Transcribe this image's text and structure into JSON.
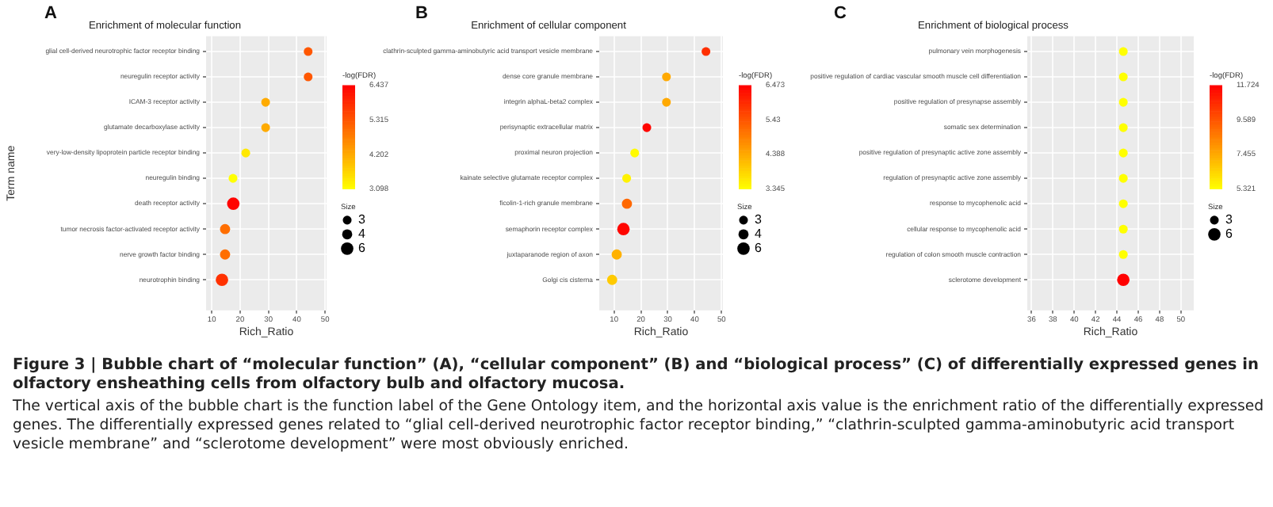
{
  "chart_data": [
    {
      "type": "bubble",
      "orientation": "horizontal",
      "title": "Enrichment of molecular function",
      "xlabel": "Rich_Ratio",
      "ylabel": "Term name",
      "clabel": "-log(FDR)",
      "legend_title": "Size",
      "annotations": [
        "A"
      ],
      "categories": [
        "glial cell-derived neurotrophic factor receptor binding",
        "neuregulin receptor activity",
        "ICAM-3 receptor activity",
        "glutamate decarboxylase activity",
        "very-low-density lipoprotein particle receptor binding",
        "neuregulin binding",
        "death receptor activity",
        "tumor necrosis factor-activated receptor activity",
        "nerve growth factor binding",
        "neurotrophin binding"
      ],
      "values": [
        44,
        44,
        29,
        29,
        22,
        17.5,
        17.6,
        14.7,
        14.7,
        13.6
      ],
      "sizes": [
        3,
        3,
        3,
        3,
        3,
        3,
        6,
        4,
        4,
        6
      ],
      "cvalues": [
        5.3,
        5.3,
        4.2,
        4.2,
        3.4,
        3.1,
        6.4,
        5.0,
        5.0,
        5.8
      ],
      "size_legend": [
        3,
        4,
        6
      ],
      "clim": [
        3.098,
        6.437
      ],
      "cticks": [
        3.098,
        4.202,
        5.315,
        6.437
      ],
      "xlim": [
        8,
        50.5
      ],
      "xticks": [
        10,
        20,
        30,
        40,
        50
      ],
      "grid": true
    },
    {
      "type": "bubble",
      "orientation": "horizontal",
      "title": "Enrichment of cellular component",
      "xlabel": "Rich_Ratio",
      "clabel": "-log(FDR)",
      "legend_title": "Size",
      "annotations": [
        "B"
      ],
      "categories": [
        "clathrin-sculpted gamma-aminobutyric acid transport vesicle membrane",
        "dense core granule membrane",
        "integrin alphaL-beta2 complex",
        "perisynaptic extracellular matrix",
        "proximal neuron projection",
        "kainate selective glutamate receptor complex",
        "ficolin-1-rich granule membrane",
        "semaphorin receptor complex",
        "juxtaparanode region of axon",
        "Golgi cis cisterna"
      ],
      "values": [
        44.2,
        29.5,
        29.5,
        22.2,
        17.7,
        14.7,
        14.8,
        13.5,
        11,
        9.3
      ],
      "sizes": [
        3,
        3,
        3,
        3,
        3,
        3,
        4,
        6,
        4,
        4
      ],
      "cvalues": [
        5.9,
        4.4,
        4.4,
        6.4,
        3.4,
        3.5,
        5.2,
        6.4,
        4.3,
        4.0
      ],
      "size_legend": [
        3,
        4,
        6
      ],
      "clim": [
        3.345,
        6.473
      ],
      "cticks": [
        3.345,
        4.388,
        5.43,
        6.473
      ],
      "xlim": [
        4.5,
        50.5
      ],
      "xticks": [
        10,
        20,
        30,
        40,
        50
      ],
      "grid": true
    },
    {
      "type": "bubble",
      "orientation": "horizontal",
      "title": "Enrichment of biological process",
      "xlabel": "Rich_Ratio",
      "clabel": "-log(FDR)",
      "legend_title": "Size",
      "annotations": [
        "C",
        "Figure 3  |  Bubble chart of “molecular function” (A), “cellular component” (B) and “biological process” (C) of differentially expressed genes in olfactory ensheathing cells from olfactory bulb and olfactory mucosa.",
        "The vertical axis of the bubble chart is the function label of the Gene Ontology item, and the horizontal axis value is the enrichment ratio of the differentially expressed genes. The differentially expressed genes related to “glial cell-derived neurotrophic factor receptor binding,” “clathrin-sculpted gamma-aminobutyric acid transport vesicle membrane” and “sclerotome development” were most obviously enriched."
      ],
      "categories": [
        "pulmonary vein morphogenesis",
        "positive regulation of cardiac vascular smooth muscle cell differentiation",
        "positive regulation of presynapse assembly",
        "somatic sex determination",
        "positive regulation of presynaptic active zone assembly",
        "regulation of presynaptic active zone assembly",
        "response to mycophenolic acid",
        "cellular response to mycophenolic acid",
        "regulation of colon smooth muscle contraction",
        "sclerotome development"
      ],
      "values": [
        44.6,
        44.6,
        44.6,
        44.6,
        44.6,
        44.6,
        44.6,
        44.6,
        44.6,
        44.6
      ],
      "sizes": [
        3,
        3,
        3,
        3,
        3,
        3,
        3,
        3,
        3,
        6
      ],
      "cvalues": [
        5.321,
        5.321,
        5.321,
        5.321,
        5.321,
        5.321,
        5.321,
        5.321,
        5.321,
        11.724
      ],
      "size_legend": [
        3,
        6
      ],
      "clim": [
        5.321,
        11.724
      ],
      "cticks": [
        5.321,
        7.455,
        9.589,
        11.724
      ],
      "xlim": [
        35.6,
        51.2
      ],
      "xticks": [
        36,
        38,
        40,
        42,
        44,
        46,
        48,
        50
      ],
      "grid": true
    }
  ]
}
